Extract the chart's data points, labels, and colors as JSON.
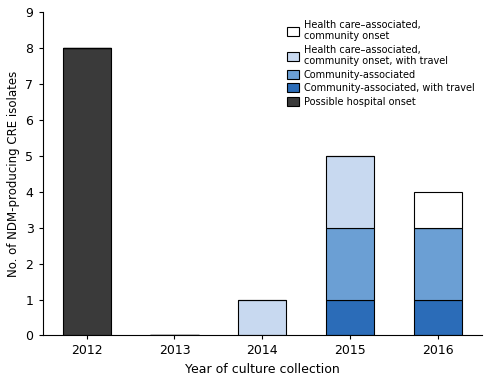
{
  "years": [
    "2012",
    "2013",
    "2014",
    "2015",
    "2016"
  ],
  "stacked_data": {
    "Possible hospital onset": [
      8,
      0,
      0,
      0,
      0
    ],
    "Community-associated, with travel": [
      0,
      0,
      0,
      1,
      1
    ],
    "Community-associated": [
      0,
      0,
      0,
      2,
      2
    ],
    "Health care-associated, community onset, with travel": [
      0,
      0,
      1,
      2,
      0
    ],
    "Health care-associated, community onset": [
      0,
      0,
      0,
      0,
      1
    ]
  },
  "colors": {
    "Possible hospital onset": "#3a3a3a",
    "Community-associated, with travel": "#2b6cb8",
    "Community-associated": "#6b9fd4",
    "Health care-associated, community onset, with travel": "#c8d9f0",
    "Health care-associated, community onset": "#ffffff"
  },
  "legend_labels": [
    "Health care–associated,\ncommunity onset",
    "Health care–associated,\ncommunity onset, with travel",
    "Community-associated",
    "Community-associated, with travel",
    "Possible hospital onset"
  ],
  "legend_color_keys": [
    "Health care-associated, community onset",
    "Health care-associated, community onset, with travel",
    "Community-associated",
    "Community-associated, with travel",
    "Possible hospital onset"
  ],
  "xlabel": "Year of culture collection",
  "ylabel": "No. of NDM-producing CRE isolates",
  "ylim": [
    0,
    9
  ],
  "yticks": [
    0,
    1,
    2,
    3,
    4,
    5,
    6,
    7,
    8,
    9
  ],
  "bar_width": 0.55
}
